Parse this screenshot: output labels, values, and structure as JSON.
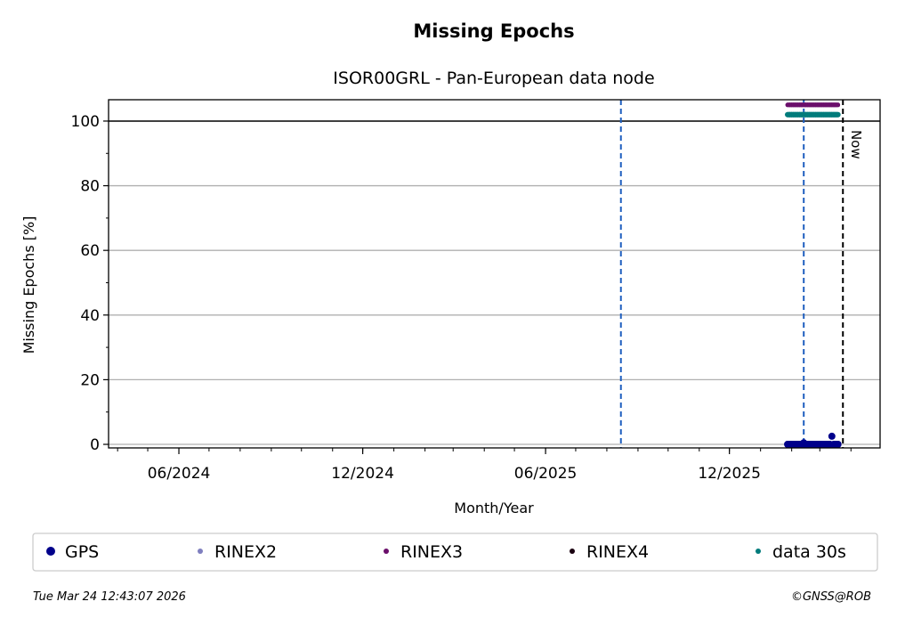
{
  "chart_data": {
    "type": "scatter",
    "title": "Missing Epochs",
    "subtitle": "ISOR00GRL - Pan-European data node",
    "xlabel": "Month/Year",
    "ylabel": "Missing Epochs [%]",
    "xlim": [
      "2024-03-23",
      "2026-04-30"
    ],
    "ylim": [
      -1.1,
      106.6
    ],
    "yticks": [
      0,
      20,
      40,
      60,
      80,
      100
    ],
    "xticks": [
      {
        "date": "2024-06-01",
        "label": "06/2024"
      },
      {
        "date": "2024-12-01",
        "label": "12/2024"
      },
      {
        "date": "2025-06-01",
        "label": "06/2025"
      },
      {
        "date": "2025-12-01",
        "label": "12/2025"
      }
    ],
    "grid": "horizontal",
    "reference_line_y": 100,
    "vertical_markers": [
      {
        "date": "2025-08-15",
        "color": "#1f5fbf",
        "style": "dashed"
      },
      {
        "date": "2026-02-13",
        "color": "#1f5fbf",
        "style": "dashed"
      },
      {
        "date": "2026-03-24",
        "color": "#000000",
        "style": "dashed",
        "label": "Now"
      }
    ],
    "dates": [
      "2026-01-28",
      "2026-01-30",
      "2026-02-01",
      "2026-02-03",
      "2026-02-05",
      "2026-02-07",
      "2026-02-09",
      "2026-02-11",
      "2026-02-13",
      "2026-02-15",
      "2026-02-17",
      "2026-02-19",
      "2026-02-21",
      "2026-02-23",
      "2026-02-25",
      "2026-02-27",
      "2026-03-01",
      "2026-03-03",
      "2026-03-05",
      "2026-03-07",
      "2026-03-09",
      "2026-03-11",
      "2026-03-13",
      "2026-03-15",
      "2026-03-17",
      "2026-03-19"
    ],
    "series": [
      {
        "name": "GPS",
        "color": "#00008b",
        "size": 4,
        "values": [
          0,
          0,
          0,
          0,
          0,
          0,
          0,
          0,
          0.5,
          0,
          0,
          0,
          0,
          0,
          0,
          0,
          0,
          0,
          0,
          0,
          0,
          0,
          2.5,
          0,
          0,
          0
        ]
      },
      {
        "name": "RINEX2",
        "color": "#7f7fbf",
        "size": 2.5,
        "values": []
      },
      {
        "name": "RINEX3",
        "color": "#6b0f6b",
        "size": 2.5,
        "values": [
          105,
          105,
          105,
          105,
          105,
          105,
          105,
          105,
          105,
          105,
          105,
          105,
          105,
          105,
          105,
          105,
          105,
          105,
          105,
          105,
          105,
          105,
          105,
          105,
          105,
          105
        ]
      },
      {
        "name": "RINEX4",
        "color": "#1a0010",
        "size": 2.5,
        "values": []
      },
      {
        "name": "data 30s",
        "color": "#007b7b",
        "size": 3,
        "values": [
          102,
          102,
          102,
          102,
          102,
          102,
          102,
          102,
          102,
          102,
          102,
          102,
          102,
          102,
          102,
          102,
          102,
          102,
          102,
          102,
          102,
          102,
          102,
          102,
          102,
          102
        ]
      }
    ],
    "legend": "bottom"
  },
  "footer": {
    "timestamp": "Tue Mar 24 12:43:07 2026",
    "copyright": "©GNSS@ROB"
  }
}
